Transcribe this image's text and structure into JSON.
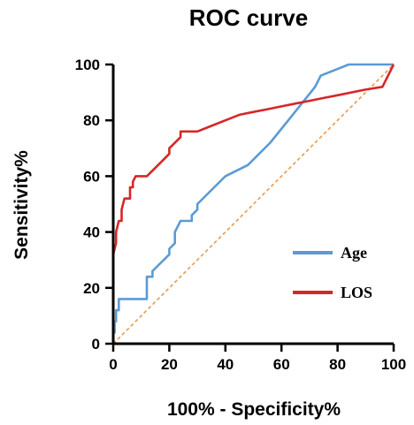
{
  "chart_data": {
    "type": "line",
    "title": "ROC curve",
    "xlabel": "100% - Specificity%",
    "ylabel": "Sensitivity%",
    "xlim": [
      0,
      100
    ],
    "ylim": [
      0,
      100
    ],
    "xticks": [
      0,
      20,
      40,
      60,
      80,
      100
    ],
    "yticks": [
      0,
      20,
      40,
      60,
      80,
      100
    ],
    "grid": false,
    "legend_position": "bottom-right",
    "series": [
      {
        "name": "Age",
        "color": "#5b9bd5",
        "x": [
          0,
          0,
          0.5,
          0.5,
          1,
          1,
          2,
          2,
          12,
          12,
          14,
          14,
          16,
          18,
          20,
          20,
          22,
          22,
          24,
          28,
          28,
          30,
          30,
          40,
          48,
          56,
          64,
          72,
          74,
          84,
          88,
          100
        ],
        "y": [
          0,
          4,
          4,
          8,
          8,
          12,
          12,
          16,
          16,
          24,
          24,
          26,
          28,
          30,
          32,
          34,
          36,
          40,
          44,
          44,
          46,
          48,
          50,
          60,
          64,
          72,
          82,
          92,
          96,
          100,
          100,
          100
        ]
      },
      {
        "name": "LOS",
        "color": "#d62728",
        "x": [
          0,
          0,
          0.5,
          1,
          1,
          2,
          3,
          3,
          4,
          5,
          6,
          6,
          7,
          7,
          8,
          8,
          10,
          12,
          12,
          15,
          18,
          20,
          20,
          24,
          24,
          27,
          30,
          35,
          40,
          45,
          50,
          55,
          60,
          65,
          70,
          75,
          80,
          90,
          96,
          100
        ],
        "y": [
          0,
          32,
          34,
          36,
          40,
          44,
          44,
          48,
          52,
          52,
          52,
          56,
          56,
          58,
          60,
          60,
          60,
          60,
          60,
          63,
          66,
          68,
          70,
          74,
          76,
          76,
          76,
          78,
          80,
          82,
          83,
          84,
          85,
          86,
          87,
          88,
          89,
          91,
          92,
          100
        ]
      },
      {
        "name": "",
        "color": "#e7a45d",
        "x": [
          0,
          100
        ],
        "y": [
          0,
          100
        ]
      }
    ]
  }
}
